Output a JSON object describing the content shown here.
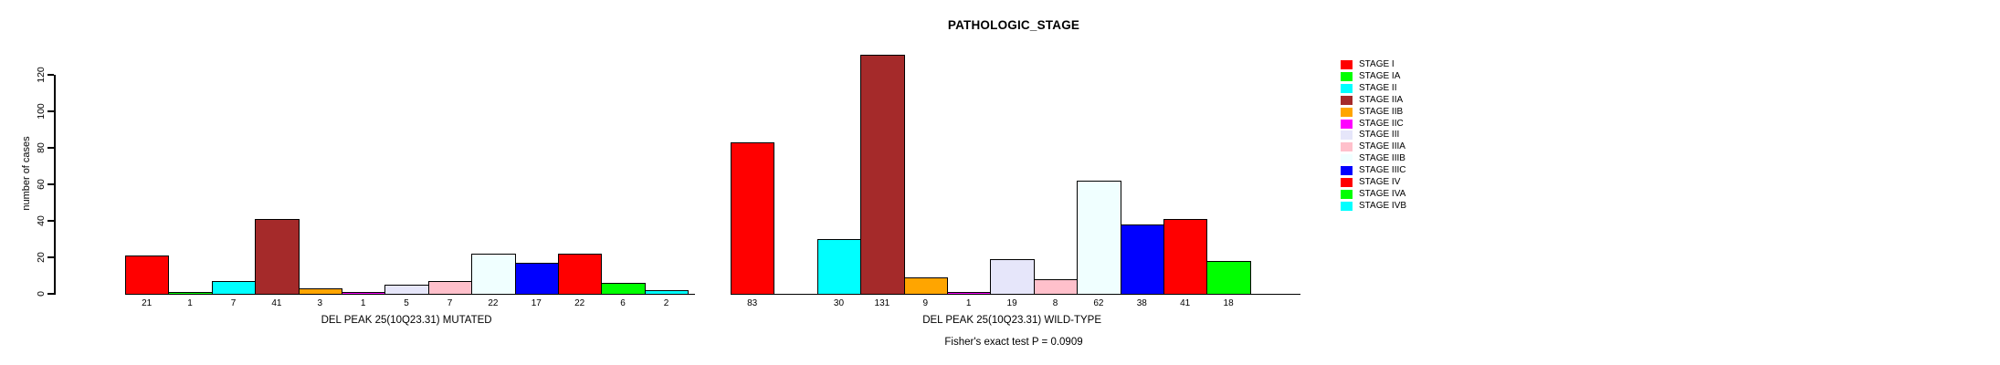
{
  "chart_data": {
    "type": "bar",
    "title": "PATHOLOGIC_STAGE",
    "ylabel": "number of cases",
    "ylim": [
      0,
      120
    ],
    "yticks": [
      0,
      20,
      40,
      60,
      80,
      100,
      120
    ],
    "grid": false,
    "legend_position": "right",
    "categories": [
      "STAGE I",
      "STAGE IA",
      "STAGE II",
      "STAGE IIA",
      "STAGE IIB",
      "STAGE IIC",
      "STAGE III",
      "STAGE IIIA",
      "STAGE IIIB",
      "STAGE IIIC",
      "STAGE IV",
      "STAGE IVA",
      "STAGE IVB"
    ],
    "colors": [
      "#FF0000",
      "#00FF00",
      "#00FFFF",
      "#A52A2A",
      "#FFA500",
      "#FF00FF",
      "#E6E6FA",
      "#FFC0CB",
      "#F0FFFF",
      "#0000FF",
      "#FF0000",
      "#00FF00",
      "#00FFFF"
    ],
    "series": [
      {
        "name": "DEL PEAK 25(10Q23.31) MUTATED",
        "values": [
          21,
          1,
          7,
          41,
          3,
          1,
          5,
          7,
          22,
          17,
          22,
          6,
          2
        ]
      },
      {
        "name": "DEL PEAK 25(10Q23.31) WILD-TYPE",
        "values": [
          83,
          0,
          30,
          131,
          9,
          1,
          19,
          8,
          62,
          38,
          41,
          18,
          0
        ]
      }
    ],
    "bar_value_labels": {
      "mutated": [
        "21",
        "1",
        "7",
        "41",
        "3",
        "1",
        "5",
        "7",
        "22",
        "17",
        "22",
        "6",
        "2"
      ],
      "wild_type": [
        "83",
        "30",
        "131",
        "9",
        "1",
        "19",
        "8",
        "62",
        "38",
        "41",
        "18"
      ]
    },
    "annotation": "Fisher's exact test P = 0.0909"
  }
}
